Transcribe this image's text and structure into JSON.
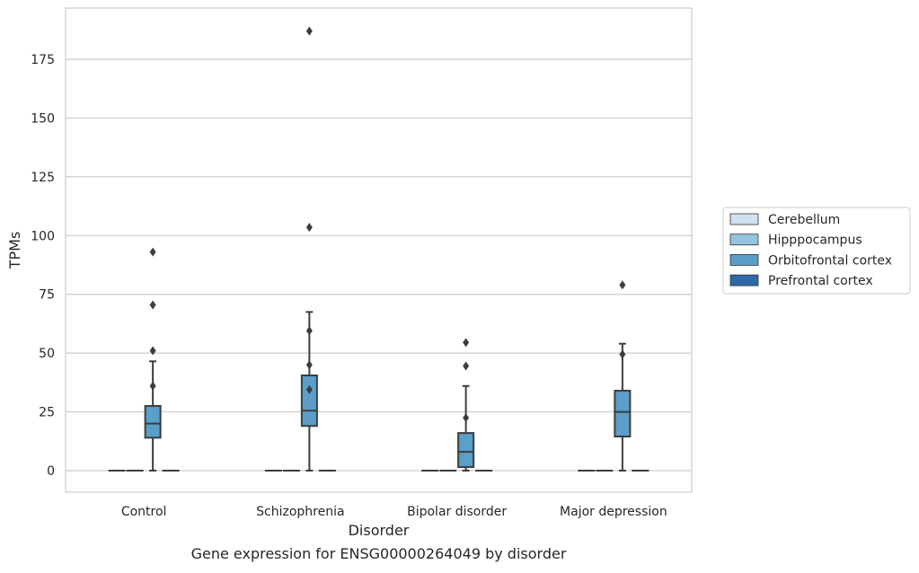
{
  "chart_data": {
    "type": "box",
    "caption": "Gene expression for ENSG00000264049 by disorder",
    "xlabel": "Disorder",
    "ylabel": "TPMs",
    "ylim": [
      -9,
      196
    ],
    "yticks": [
      0,
      25,
      50,
      75,
      100,
      125,
      150,
      175
    ],
    "grid": "horizontal",
    "legend_position": "right",
    "categories": [
      "Control",
      "Schizophrenia",
      "Bipolar disorder",
      "Major depression"
    ],
    "series": [
      {
        "name": "Cerebellum",
        "color": "#d0e1f2",
        "boxes": [
          {
            "q1": 0,
            "median": 0,
            "q3": 0,
            "whisker_low": 0,
            "whisker_high": 0,
            "outliers": []
          },
          {
            "q1": 0,
            "median": 0,
            "q3": 0,
            "whisker_low": 0,
            "whisker_high": 0,
            "outliers": []
          },
          {
            "q1": 0,
            "median": 0,
            "q3": 0,
            "whisker_low": 0,
            "whisker_high": 0,
            "outliers": []
          },
          {
            "q1": 0,
            "median": 0,
            "q3": 0,
            "whisker_low": 0,
            "whisker_high": 0,
            "outliers": []
          }
        ]
      },
      {
        "name": "Hipppocampus",
        "color": "#94c4df",
        "boxes": [
          {
            "q1": 0,
            "median": 0,
            "q3": 0,
            "whisker_low": 0,
            "whisker_high": 0,
            "outliers": []
          },
          {
            "q1": 0,
            "median": 0,
            "q3": 0,
            "whisker_low": 0,
            "whisker_high": 0,
            "outliers": []
          },
          {
            "q1": 0,
            "median": 0,
            "q3": 0,
            "whisker_low": 0,
            "whisker_high": 0,
            "outliers": []
          },
          {
            "q1": 0,
            "median": 0,
            "q3": 0,
            "whisker_low": 0,
            "whisker_high": 0,
            "outliers": []
          }
        ]
      },
      {
        "name": "Orbitofrontal cortex",
        "color": "#5a9ec9",
        "boxes": [
          {
            "q1": 14,
            "median": 20,
            "q3": 27.5,
            "whisker_low": 0,
            "whisker_high": 46.5,
            "outliers": [
              36,
              51,
              70.5,
              93
            ]
          },
          {
            "q1": 19,
            "median": 25.5,
            "q3": 40.5,
            "whisker_low": 0,
            "whisker_high": 67.5,
            "outliers": [
              34.5,
              45,
              59.5,
              103.5,
              187
            ]
          },
          {
            "q1": 1.5,
            "median": 8,
            "q3": 16,
            "whisker_low": 0,
            "whisker_high": 36,
            "outliers": [
              22.5,
              44.5,
              54.5
            ]
          },
          {
            "q1": 14.5,
            "median": 25,
            "q3": 34,
            "whisker_low": 0,
            "whisker_high": 54,
            "outliers": [
              49.5,
              79
            ]
          }
        ]
      },
      {
        "name": "Prefrontal cortex",
        "color": "#2d69a8",
        "boxes": [
          {
            "q1": 0,
            "median": 0,
            "q3": 0,
            "whisker_low": 0,
            "whisker_high": 0,
            "outliers": []
          },
          {
            "q1": 0,
            "median": 0,
            "q3": 0,
            "whisker_low": 0,
            "whisker_high": 0,
            "outliers": []
          },
          {
            "q1": 0,
            "median": 0,
            "q3": 0,
            "whisker_low": 0,
            "whisker_high": 0,
            "outliers": []
          },
          {
            "q1": 0,
            "median": 0,
            "q3": 0,
            "whisker_low": 0,
            "whisker_high": 0,
            "outliers": []
          }
        ]
      }
    ]
  }
}
